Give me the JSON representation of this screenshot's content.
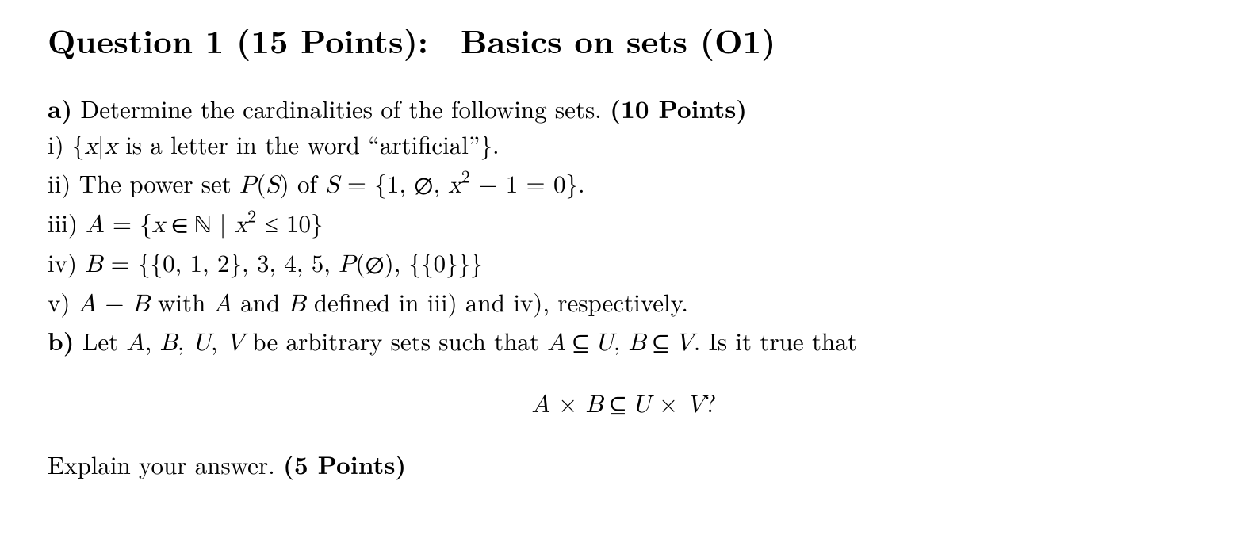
{
  "title": "Question 1 (15 Points): Basics on sets (O1)",
  "lines": {
    "a_label": "a)",
    "a_text": " Determine the cardinalities of the following sets. ",
    "a_pts": "(10 Points)",
    "i_lead": "i) {",
    "i_var": "x",
    "i_bar": "|",
    "i_var2": "x",
    "i_after": " is a letter in the word “artificial”}.",
    "ii_lead": "ii) The power set ",
    "ii_P": "P",
    "ii_paren1": "(",
    "ii_S": "S",
    "ii_paren2": ")",
    "ii_of": " of ",
    "ii_S2": "S",
    "ii_eq": " = {1, ",
    "ii_empty": "∅",
    "ii_comma": ", ",
    "ii_x": "x",
    "ii_sq": "2",
    "ii_rest": " − 1 = 0}.",
    "iii_lead": "iii) ",
    "iii_A": "A",
    "iii_eq": " = {",
    "iii_x": "x",
    "iii_in": " ∈ ",
    "iii_N": "ℕ",
    "iii_bar": " | ",
    "iii_x2": "x",
    "iii_sq": "2",
    "iii_rest": " ≤ 10}",
    "iv_lead": "iv) ",
    "iv_B": "B",
    "iv_eq": " = {{0, 1, 2}, 3, 4, 5, ",
    "iv_P": "P",
    "iv_paren1": "(",
    "iv_empty": "∅",
    "iv_paren2": ")",
    "iv_rest": ", {{0}}}",
    "v_lead": "v) ",
    "v_A": "A",
    "v_minus": " − ",
    "v_B": "B",
    "v_with": " with ",
    "v_A2": "A",
    "v_and": " and ",
    "v_B2": "B",
    "v_rest": " defined in iii) and iv), respectively.",
    "b_label": "b)",
    "b_text1": " Let ",
    "b_A": "A",
    "b_c1": ", ",
    "b_B": "B",
    "b_c2": ", ",
    "b_U": "U",
    "b_c3": ", ",
    "b_V": "V",
    "b_text2": " be arbitrary sets such that ",
    "b_A2": "A",
    "b_sub1": " ⊆ ",
    "b_U2": "U",
    "b_c4": ", ",
    "b_B2": "B",
    "b_sub2": " ⊆ ",
    "b_V2": "V",
    "b_text3": ". Is it true that",
    "disp_A": "A",
    "disp_t": " × ",
    "disp_B": "B",
    "disp_sub": " ⊆ ",
    "disp_U": "U",
    "disp_t2": " × ",
    "disp_V": "V",
    "disp_q": "?",
    "explain": "Explain your answer. ",
    "explain_pts": "(5 Points)"
  }
}
